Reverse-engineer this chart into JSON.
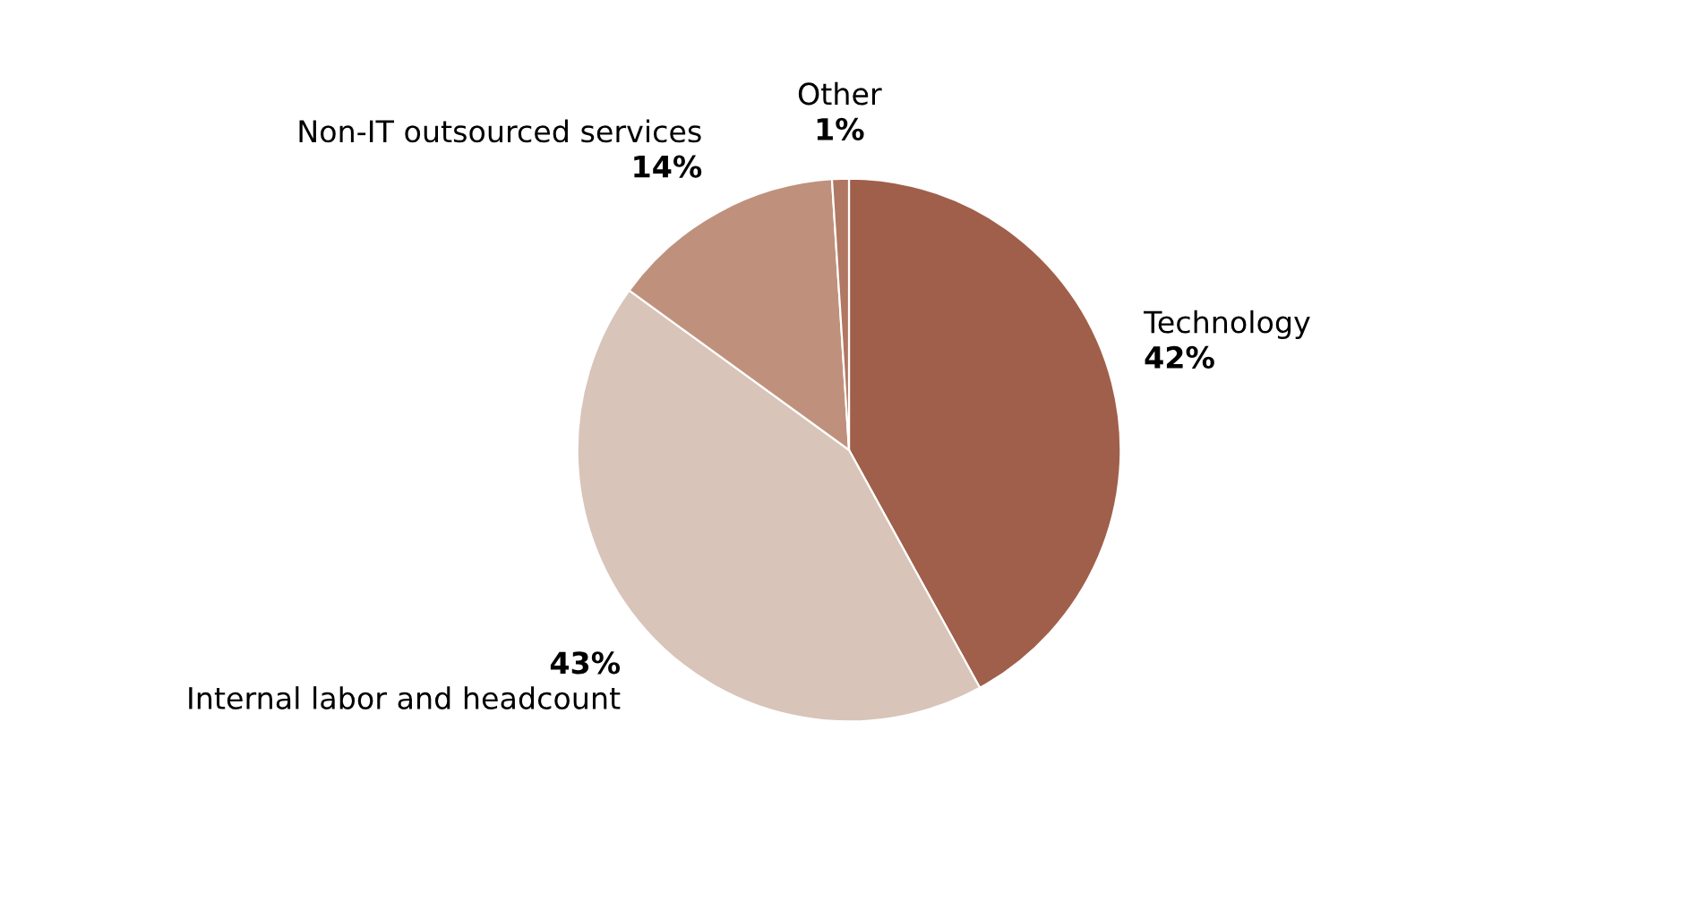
{
  "chart_data": {
    "type": "pie",
    "categories": [
      "Technology",
      "Internal labor and headcount",
      "Non-IT outsourced services",
      "Other"
    ],
    "values": [
      42,
      43,
      14,
      1
    ],
    "colors": [
      "#a05f4a",
      "#d8c4b9",
      "#bf917c",
      "#b07762"
    ],
    "value_labels": [
      "42%",
      "43%",
      "14%",
      "1%"
    ],
    "legend": false
  }
}
